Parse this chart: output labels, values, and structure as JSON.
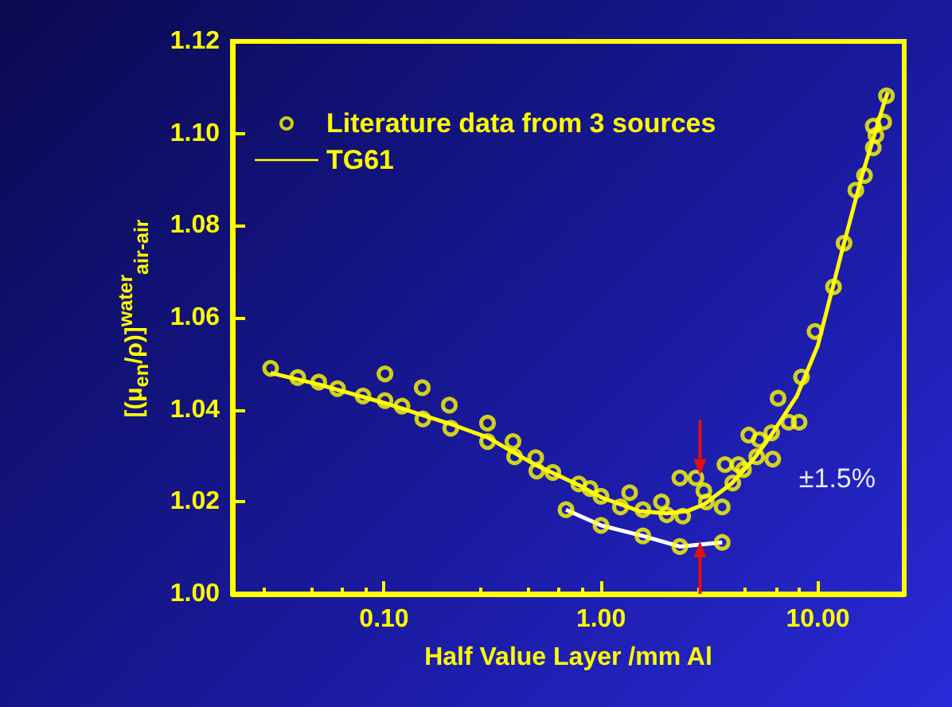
{
  "chart_data": {
    "type": "scatter",
    "xlabel": "Half Value Layer /mm Al",
    "ylabel": "[(μ$_{en}$/ρ)]$^{water}$$_{air-air}$",
    "log": "x",
    "grid": false,
    "legend": "top left",
    "xlim": [
      0.02,
      25
    ],
    "xticks": [
      {
        "value": 0.1,
        "label": "0.10"
      },
      {
        "value": 1,
        "label": "1.00"
      },
      {
        "value": 10,
        "label": "10.00"
      }
    ],
    "ylim": [
      1.0,
      1.12
    ],
    "yticks": [
      {
        "value": 1.0,
        "label": "1.00"
      },
      {
        "value": 1.02,
        "label": "1.02"
      },
      {
        "value": 1.04,
        "label": "1.04"
      },
      {
        "value": 1.06,
        "label": "1.06"
      },
      {
        "value": 1.08,
        "label": "1.08"
      },
      {
        "value": 1.1,
        "label": "1.10"
      },
      {
        "value": 1.12,
        "label": "1.12"
      }
    ],
    "annotations": [
      "±1.5%"
    ],
    "series": [
      {
        "name": "Literature data from 3 sources",
        "marker": "circle",
        "color": "#ffff00",
        "x": [
          0.03,
          0.04,
          0.05,
          0.061,
          0.08,
          0.101,
          0.101,
          0.121,
          0.15,
          0.151,
          0.2,
          0.203,
          0.3,
          0.3,
          0.393,
          0.4,
          0.5,
          0.506,
          0.6,
          0.79,
          0.89,
          1.0,
          0.69,
          1.0,
          1.355,
          1.23,
          1.56,
          1.9,
          2.01,
          2.38,
          2.31,
          2.74,
          2.98,
          3.06,
          3.62,
          4.05,
          3.73,
          4.3,
          4.54,
          4.8,
          5.22,
          5.37,
          6.19,
          6.12,
          6.55,
          7.33,
          8.19,
          8.4,
          9.7,
          11.8,
          13.2,
          14.96,
          16.4,
          18.0,
          18.5,
          18.0,
          20.1,
          20.7,
          1.56,
          2.31,
          3.62
        ],
        "values": [
          1.049,
          1.047,
          1.046,
          1.0446,
          1.043,
          1.0478,
          1.042,
          1.0408,
          1.0448,
          1.038,
          1.041,
          1.036,
          1.0371,
          1.0331,
          1.0331,
          1.0298,
          1.0296,
          1.0267,
          1.0264,
          1.0239,
          1.0229,
          1.0212,
          1.0183,
          1.0149,
          1.022,
          1.0189,
          1.0183,
          1.02,
          1.0172,
          1.0169,
          1.0252,
          1.0252,
          1.0224,
          1.02,
          1.0189,
          1.0241,
          1.0281,
          1.0281,
          1.027,
          1.0345,
          1.0298,
          1.0335,
          1.0293,
          1.035,
          1.0425,
          1.0373,
          1.0373,
          1.0471,
          1.057,
          1.0667,
          1.0762,
          1.0877,
          1.0909,
          1.0969,
          1.0996,
          1.1016,
          1.1025,
          1.1082,
          1.0126,
          1.0103,
          1.0112
        ]
      },
      {
        "name": "TG61",
        "type": "line",
        "marker": "none",
        "color": "#ffff00",
        "x": [
          0.03,
          0.05,
          0.1,
          0.2,
          0.3,
          0.5,
          0.8,
          1.0,
          1.5,
          2.0,
          2.5,
          3.0,
          4.0,
          5.0,
          6.0,
          8.0,
          10.0,
          13.0,
          16.0,
          20.0,
          21.0
        ],
        "values": [
          1.048,
          1.0455,
          1.0415,
          1.037,
          1.034,
          1.028,
          1.0235,
          1.021,
          1.018,
          1.0175,
          1.018,
          1.0195,
          1.024,
          1.029,
          1.034,
          1.043,
          1.054,
          1.075,
          1.091,
          1.106,
          1.109
        ]
      },
      {
        "type": "line",
        "marker": "none",
        "color": "#ffffff",
        "x": [
          0.69,
          1.0,
          1.56,
          2.31,
          3.62
        ],
        "values": [
          1.0183,
          1.0149,
          1.0126,
          1.0103,
          1.0112
        ]
      }
    ]
  }
}
